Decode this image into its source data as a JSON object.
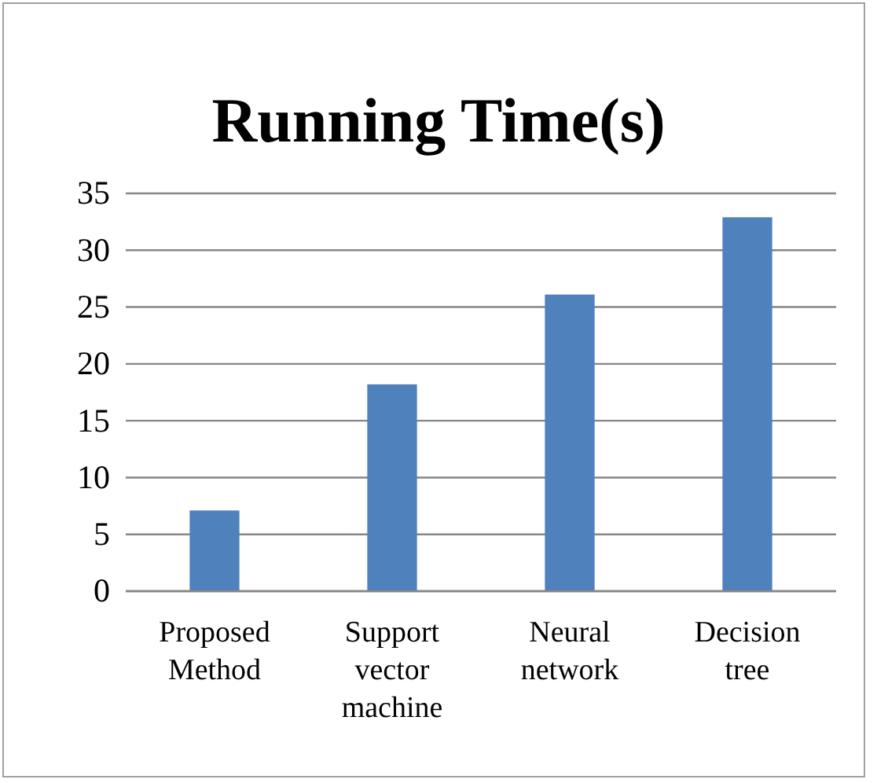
{
  "chart_data": {
    "type": "bar",
    "title": "Running Time(s)",
    "categories": [
      "Proposed Method",
      "Support vector machine",
      "Neural network",
      "Decision tree"
    ],
    "values": [
      7.1,
      18.2,
      26.1,
      32.9
    ],
    "color": "#4f81bd",
    "ylim": [
      0,
      35
    ],
    "yticks": [
      0,
      5,
      10,
      15,
      20,
      25,
      30,
      35
    ],
    "grid": "y"
  }
}
